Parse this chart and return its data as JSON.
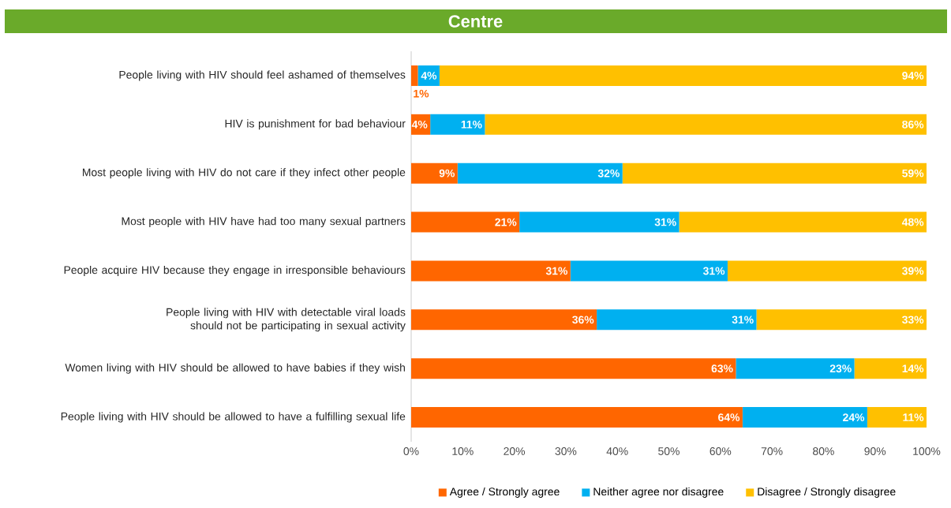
{
  "chart_data": {
    "type": "bar",
    "orientation": "horizontal",
    "stacked": true,
    "title": "Centre",
    "categories": [
      "People living with HIV should feel ashamed of themselves",
      "HIV is punishment for bad behaviour",
      "Most people living with HIV do not care if they infect other people",
      "Most people with HIV have had too many sexual partners",
      "People acquire HIV because they engage in irresponsible behaviours",
      "People living with HIV with detectable viral loads should not be participating in sexual activity",
      "Women living with HIV should be allowed to have babies if they wish",
      "People living with HIV should be allowed to have a fulfilling sexual life"
    ],
    "series": [
      {
        "name": "Agree / Strongly agree",
        "color": "#ff6600",
        "values": [
          1.3,
          3.7,
          9,
          21,
          30.9,
          36,
          63,
          64.3
        ],
        "value_labels": [
          "1%",
          "4%",
          "9%",
          "21%",
          "31%",
          "36%",
          "63%",
          "64%"
        ]
      },
      {
        "name": "Neither agree nor disagree",
        "color": "#00b0f0",
        "values": [
          4.2,
          10.6,
          32,
          31,
          30.5,
          31,
          23,
          24.2
        ],
        "value_labels": [
          "4%",
          "11%",
          "32%",
          "31%",
          "31%",
          "31%",
          "23%",
          "24%"
        ]
      },
      {
        "name": "Disagree / Strongly disagree",
        "color": "#ffc000",
        "values": [
          94.5,
          85.7,
          59,
          48,
          38.6,
          33,
          14,
          11.5
        ],
        "value_labels": [
          "94%",
          "86%",
          "59%",
          "48%",
          "39%",
          "33%",
          "14%",
          "11%"
        ]
      }
    ],
    "xlim": [
      0,
      100
    ],
    "xticks": [
      {
        "value": 0,
        "label": "0%"
      },
      {
        "value": 10,
        "label": "10%"
      },
      {
        "value": 20,
        "label": "20%"
      },
      {
        "value": 30,
        "label": "30%"
      },
      {
        "value": 40,
        "label": "40%"
      },
      {
        "value": 50,
        "label": "50%"
      },
      {
        "value": 60,
        "label": "60%"
      },
      {
        "value": 70,
        "label": "70%"
      },
      {
        "value": 80,
        "label": "80%"
      },
      {
        "value": 90,
        "label": "90%"
      },
      {
        "value": 100,
        "label": "100%"
      }
    ],
    "legend": "bottom"
  }
}
